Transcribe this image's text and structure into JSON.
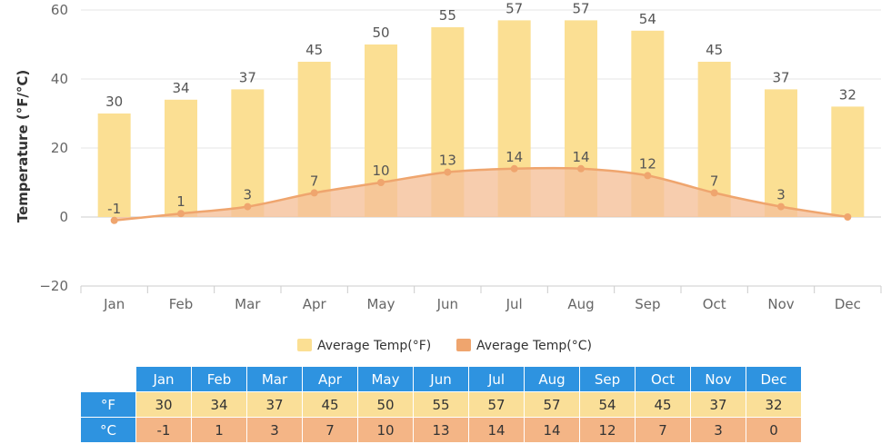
{
  "chart_data": {
    "type": "bar",
    "categories": [
      "Jan",
      "Feb",
      "Mar",
      "Apr",
      "May",
      "Jun",
      "Jul",
      "Aug",
      "Sep",
      "Oct",
      "Nov",
      "Dec"
    ],
    "series": [
      {
        "name": "Average Temp(°F)",
        "type": "bar",
        "values": [
          30,
          34,
          37,
          45,
          50,
          55,
          57,
          57,
          54,
          45,
          37,
          32
        ]
      },
      {
        "name": "Average Temp(°C)",
        "type": "area",
        "values": [
          -1,
          1,
          3,
          7,
          10,
          13,
          14,
          14,
          12,
          7,
          3,
          0
        ]
      }
    ],
    "ylabel": "Temperature (°F/°C)",
    "ylim": [
      -20,
      60
    ],
    "yticks": [
      "60",
      "40",
      "20",
      "0",
      "−20"
    ],
    "grid": true,
    "legend_position": "bottom-center",
    "colors": {
      "fahrenheit": "#fbdf93",
      "celsius": "#efa56e",
      "celsius_fill": "#f5c09a"
    }
  },
  "table": {
    "months": [
      "Jan",
      "Feb",
      "Mar",
      "Apr",
      "May",
      "Jun",
      "Jul",
      "Aug",
      "Sep",
      "Oct",
      "Nov",
      "Dec"
    ],
    "f_label": "°F",
    "c_label": "°C",
    "f_values": [
      "30",
      "34",
      "37",
      "45",
      "50",
      "55",
      "57",
      "57",
      "54",
      "45",
      "37",
      "32"
    ],
    "c_values": [
      "-1",
      "1",
      "3",
      "7",
      "10",
      "13",
      "14",
      "14",
      "12",
      "7",
      "3",
      "0"
    ],
    "colors": {
      "header": "#2e93e0",
      "f_row": "#fadf98",
      "c_row": "#f4b586"
    }
  }
}
